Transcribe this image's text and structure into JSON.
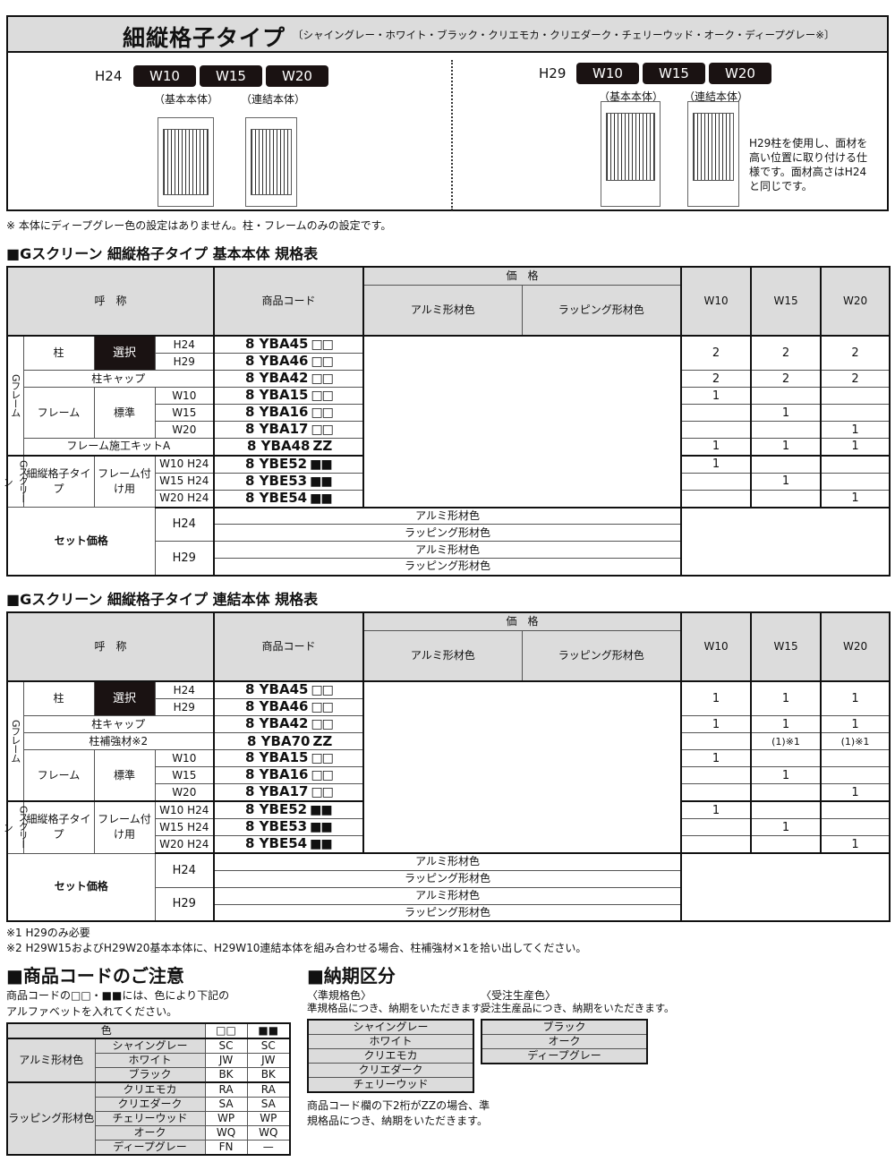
{
  "header": {
    "title": "細縦格子タイプ",
    "subtitle": "〔シャイングレー・ホワイト・ブラック・クリエモカ・クリエダーク・チェリーウッド・オーク・ディープグレー※〕",
    "left": {
      "height": "H24",
      "widths": [
        "W10",
        "W15",
        "W20"
      ],
      "captions": [
        "（基本本体）",
        "（連結本体）"
      ]
    },
    "right": {
      "height": "H29",
      "widths": [
        "W10",
        "W15",
        "W20"
      ],
      "captions": [
        "（基本本体）",
        "（連結本体）"
      ],
      "note": "H29柱を使用し、面材を高い位置に取り付ける仕様です。面材高さはH24と同じです。"
    }
  },
  "footnote_top": "※ 本体にディープグレー色の設定はありません。柱・フレームのみの設定です。",
  "tables": [
    {
      "heading": "■Gスクリーン 細縦格子タイプ 基本本体 規格表",
      "headers": {
        "name": "呼　称",
        "code": "商品コード",
        "price": "価　格",
        "price_cols": [
          "アルミ形材色",
          "ラッピング形材色"
        ],
        "qty_cols": [
          "W10",
          "W15",
          "W20"
        ]
      },
      "rows": [
        {
          "group": "Gフレーム",
          "name": "柱",
          "type": "選択",
          "size": "H24",
          "code": "8 YBA45",
          "suffix": "□□",
          "qty": [
            "2",
            "2",
            "2"
          ]
        },
        {
          "group": "Gフレーム",
          "name": "柱",
          "type": "選択",
          "size": "H29",
          "code": "8 YBA46",
          "suffix": "□□",
          "qty": null
        },
        {
          "group": "Gフレーム",
          "name": "柱キャップ",
          "type": "",
          "size": "",
          "code": "8 YBA42",
          "suffix": "□□",
          "qty": [
            "2",
            "2",
            "2"
          ]
        },
        {
          "group": "Gフレーム",
          "name": "フレーム",
          "type": "標準",
          "size": "W10",
          "code": "8 YBA15",
          "suffix": "□□",
          "qty": [
            "1",
            "",
            ""
          ]
        },
        {
          "group": "Gフレーム",
          "name": "フレーム",
          "type": "標準",
          "size": "W15",
          "code": "8 YBA16",
          "suffix": "□□",
          "qty": [
            "",
            "1",
            ""
          ]
        },
        {
          "group": "Gフレーム",
          "name": "フレーム",
          "type": "標準",
          "size": "W20",
          "code": "8 YBA17",
          "suffix": "□□",
          "qty": [
            "",
            "",
            "1"
          ]
        },
        {
          "group": "Gフレーム",
          "name": "フレーム施工キットA",
          "type": "",
          "size": "",
          "code": "8 YBA48",
          "suffix": "ZZ",
          "qty": [
            "1",
            "1",
            "1"
          ]
        },
        {
          "group": "Gスクリーン",
          "name": "細縦格子タイプ",
          "type": "フレーム付け用",
          "size": "W10 H24",
          "code": "8 YBE52",
          "suffix": "■■",
          "qty": [
            "1",
            "",
            ""
          ]
        },
        {
          "group": "Gスクリーン",
          "name": "細縦格子タイプ",
          "type": "フレーム付け用",
          "size": "W15 H24",
          "code": "8 YBE53",
          "suffix": "■■",
          "qty": [
            "",
            "1",
            ""
          ]
        },
        {
          "group": "Gスクリーン",
          "name": "細縦格子タイプ",
          "type": "フレーム付け用",
          "size": "W20 H24",
          "code": "8 YBE54",
          "suffix": "■■",
          "qty": [
            "",
            "",
            "1"
          ]
        }
      ],
      "set_price": {
        "label": "セット価格",
        "rows": [
          {
            "height": "H24",
            "color": "アルミ形材色"
          },
          {
            "height": "H24",
            "color": "ラッピング形材色"
          },
          {
            "height": "H29",
            "color": "アルミ形材色"
          },
          {
            "height": "H29",
            "color": "ラッピング形材色"
          }
        ]
      }
    },
    {
      "heading": "■Gスクリーン 細縦格子タイプ 連結本体 規格表",
      "headers": {
        "name": "呼　称",
        "code": "商品コード",
        "price": "価　格",
        "price_cols": [
          "アルミ形材色",
          "ラッピング形材色"
        ],
        "qty_cols": [
          "W10",
          "W15",
          "W20"
        ]
      },
      "rows": [
        {
          "group": "Gフレーム",
          "name": "柱",
          "type": "選択",
          "size": "H24",
          "code": "8 YBA45",
          "suffix": "□□",
          "qty": [
            "1",
            "1",
            "1"
          ]
        },
        {
          "group": "Gフレーム",
          "name": "柱",
          "type": "選択",
          "size": "H29",
          "code": "8 YBA46",
          "suffix": "□□",
          "qty": null
        },
        {
          "group": "Gフレーム",
          "name": "柱キャップ",
          "type": "",
          "size": "",
          "code": "8 YBA42",
          "suffix": "□□",
          "qty": [
            "1",
            "1",
            "1"
          ]
        },
        {
          "group": "Gフレーム",
          "name": "柱補強材※2",
          "type": "",
          "size": "",
          "code": "8 YBA70",
          "suffix": "ZZ",
          "qty": [
            "",
            "(1)※1",
            "(1)※1"
          ]
        },
        {
          "group": "Gフレーム",
          "name": "フレーム",
          "type": "標準",
          "size": "W10",
          "code": "8 YBA15",
          "suffix": "□□",
          "qty": [
            "1",
            "",
            ""
          ]
        },
        {
          "group": "Gフレーム",
          "name": "フレーム",
          "type": "標準",
          "size": "W15",
          "code": "8 YBA16",
          "suffix": "□□",
          "qty": [
            "",
            "1",
            ""
          ]
        },
        {
          "group": "Gフレーム",
          "name": "フレーム",
          "type": "標準",
          "size": "W20",
          "code": "8 YBA17",
          "suffix": "□□",
          "qty": [
            "",
            "",
            "1"
          ]
        },
        {
          "group": "Gスクリーン",
          "name": "細縦格子タイプ",
          "type": "フレーム付け用",
          "size": "W10 H24",
          "code": "8 YBE52",
          "suffix": "■■",
          "qty": [
            "1",
            "",
            ""
          ]
        },
        {
          "group": "Gスクリーン",
          "name": "細縦格子タイプ",
          "type": "フレーム付け用",
          "size": "W15 H24",
          "code": "8 YBE53",
          "suffix": "■■",
          "qty": [
            "",
            "1",
            ""
          ]
        },
        {
          "group": "Gスクリーン",
          "name": "細縦格子タイプ",
          "type": "フレーム付け用",
          "size": "W20 H24",
          "code": "8 YBE54",
          "suffix": "■■",
          "qty": [
            "",
            "",
            "1"
          ]
        }
      ],
      "set_price": {
        "label": "セット価格",
        "rows": [
          {
            "height": "H24",
            "color": "アルミ形材色"
          },
          {
            "height": "H24",
            "color": "ラッピング形材色"
          },
          {
            "height": "H29",
            "color": "アルミ形材色"
          },
          {
            "height": "H29",
            "color": "ラッピング形材色"
          }
        ]
      }
    }
  ],
  "footnotes": [
    "※1 H29のみ必要",
    "※2 H29W15およびH29W20基本本体に、H29W10連結本体を組み合わせる場合、柱補強材×1を拾い出してください。"
  ],
  "code_notice": {
    "heading": "■商品コードのご注意",
    "text": [
      "商品コードの□□・■■には、色により下記の",
      "アルファベットを入れてください。"
    ],
    "table_headers": [
      "色",
      "□□",
      "■■"
    ],
    "groups": [
      {
        "label": "アルミ形材色",
        "rows": [
          [
            "シャイングレー",
            "SC",
            "SC"
          ],
          [
            "ホワイト",
            "JW",
            "JW"
          ],
          [
            "ブラック",
            "BK",
            "BK"
          ]
        ]
      },
      {
        "label": "ラッピング形材色",
        "rows": [
          [
            "クリエモカ",
            "RA",
            "RA"
          ],
          [
            "クリエダーク",
            "SA",
            "SA"
          ],
          [
            "チェリーウッド",
            "WP",
            "WP"
          ],
          [
            "オーク",
            "WQ",
            "WQ"
          ],
          [
            "ディープグレー",
            "FN",
            "—"
          ]
        ]
      }
    ]
  },
  "delivery": {
    "heading": "■納期区分",
    "standard": {
      "title": "〈準規格色〉",
      "desc": "準規格品につき、納期をいただきます。",
      "colors": [
        "シャイングレー",
        "ホワイト",
        "クリエモカ",
        "クリエダーク",
        "チェリーウッド"
      ]
    },
    "custom": {
      "title": "〈受注生産色〉",
      "desc": "受注生産品につき、納期をいただきます。",
      "colors": [
        "ブラック",
        "オーク",
        "ディープグレー"
      ]
    },
    "note": [
      "商品コード欄の下2桁がZZの場合、準",
      "規格品につき、納期をいただきます。"
    ]
  }
}
